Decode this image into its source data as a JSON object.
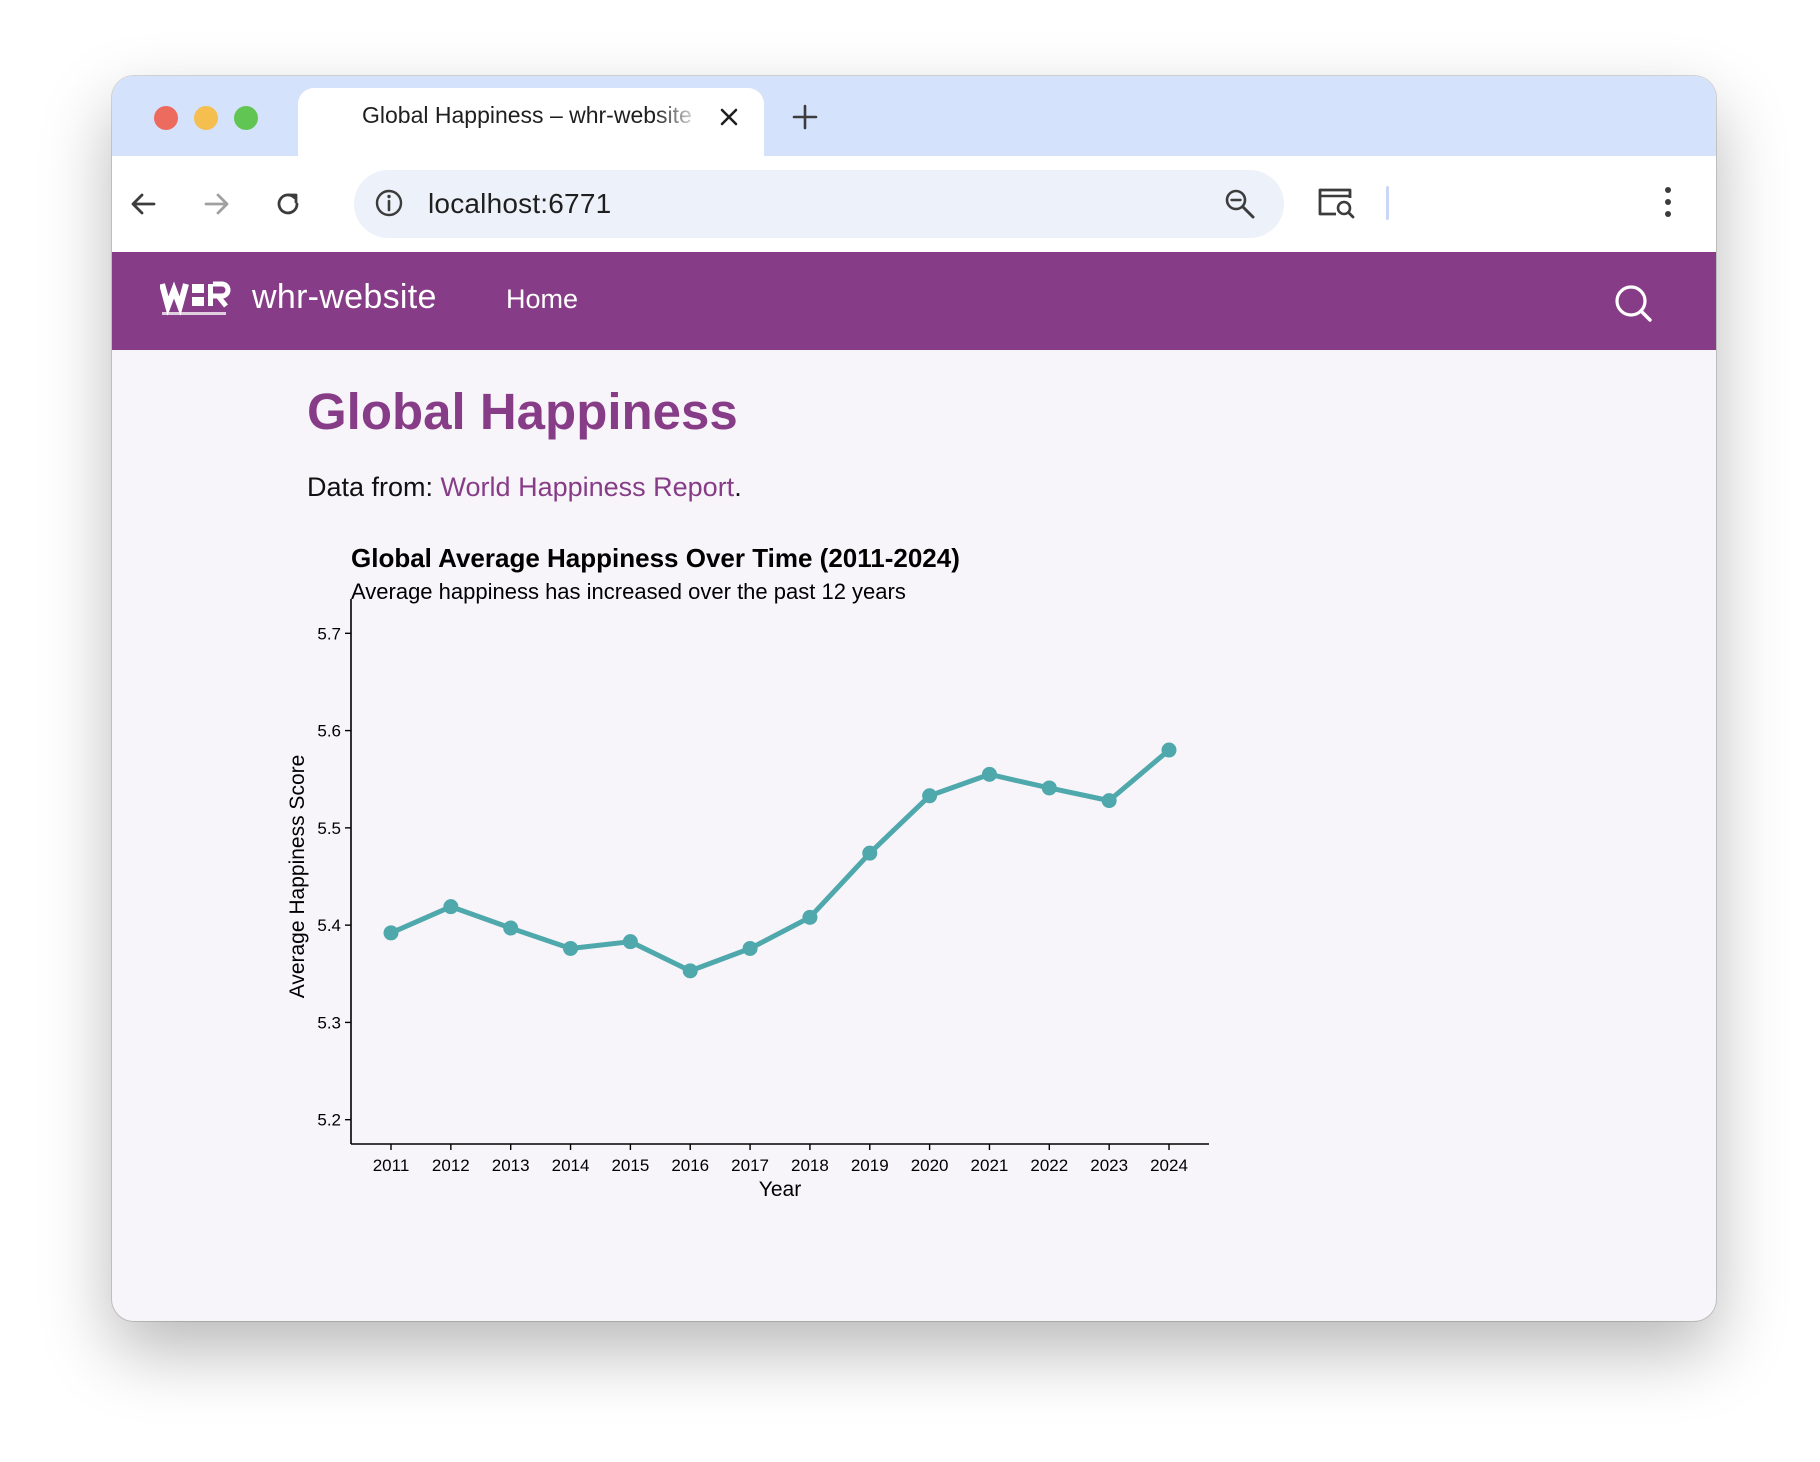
{
  "browser": {
    "tab_title": "Global Happiness – whr-website",
    "url": "localhost:6771"
  },
  "site": {
    "name": "whr-website",
    "nav_home": "Home"
  },
  "page": {
    "title": "Global Happiness",
    "data_from_label": "Data from: ",
    "data_from_link": "World Happiness Report",
    "data_from_suffix": "."
  },
  "colors": {
    "brand": "#873c87",
    "line": "#4fa8ab",
    "tab_strip": "#d5e2fb"
  },
  "chart_data": {
    "type": "line",
    "title": "Global Average Happiness Over Time (2011-2024)",
    "subtitle": "Average happiness has increased over the past 12 years",
    "xlabel": "Year",
    "ylabel": "Average Happiness Score",
    "ylim": [
      5.175,
      5.725
    ],
    "yticks": [
      5.2,
      5.3,
      5.4,
      5.5,
      5.6,
      5.7
    ],
    "grid": false,
    "x": [
      2011,
      2012,
      2013,
      2014,
      2015,
      2016,
      2017,
      2018,
      2019,
      2020,
      2021,
      2022,
      2023,
      2024
    ],
    "y": [
      5.392,
      5.419,
      5.397,
      5.376,
      5.383,
      5.353,
      5.376,
      5.408,
      5.474,
      5.533,
      5.555,
      5.541,
      5.528,
      5.58
    ]
  }
}
